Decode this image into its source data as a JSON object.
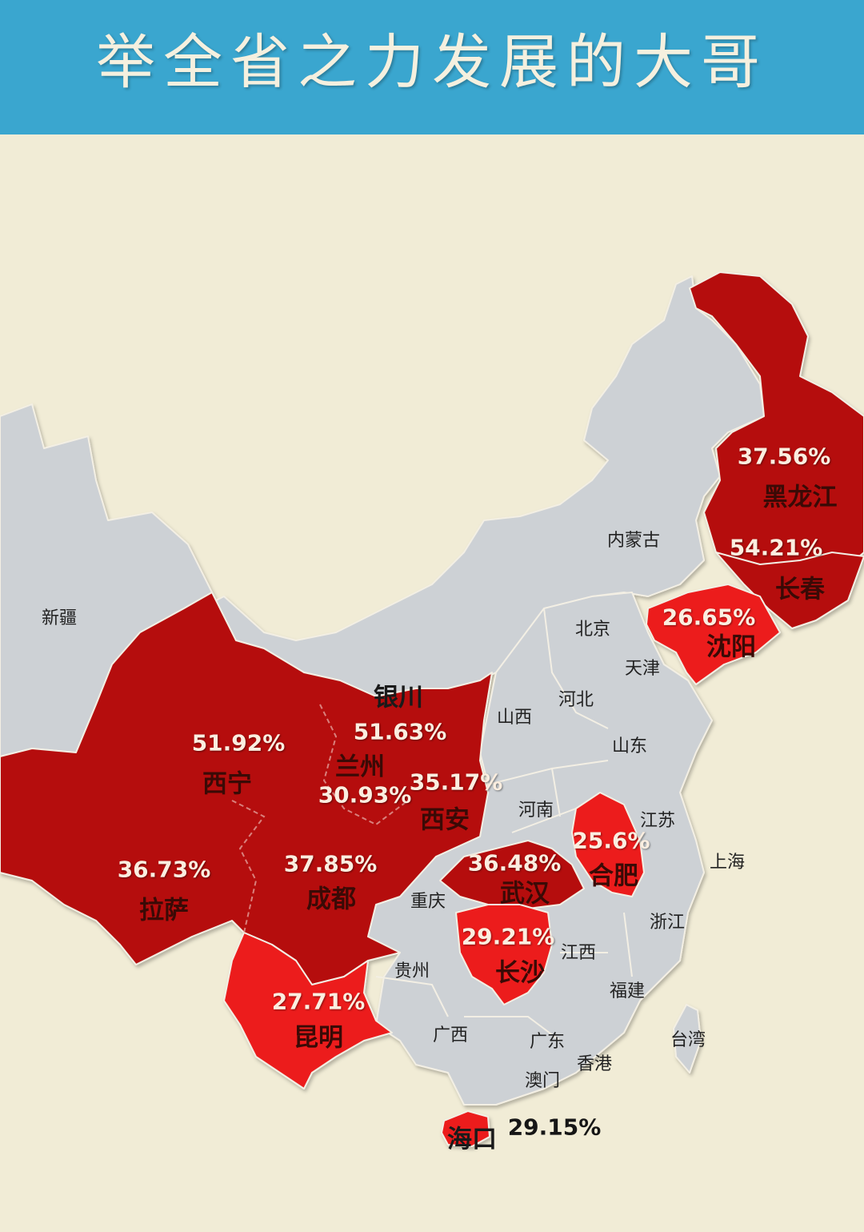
{
  "title": "举全省之力发展的大哥",
  "colors": {
    "header": "#3aa6cf",
    "background": "#f1ecd6",
    "province_gray": "#cdd1d5",
    "dark_red": "#b50e10",
    "bright_red": "#ec1f1f"
  },
  "provinces": {
    "xinjiang": "新疆",
    "neimenggu": "内蒙古",
    "beijing": "北京",
    "tianjin": "天津",
    "hebei": "河北",
    "shanxi": "山西",
    "shandong": "山东",
    "henan": "河南",
    "jiangsu": "江苏",
    "shanghai": "上海",
    "zhejiang": "浙江",
    "jiangxi": "江西",
    "fujian": "福建",
    "taiwan": "台湾",
    "guangdong": "广东",
    "guangxi": "广西",
    "guizhou": "贵州",
    "chongqing": "重庆",
    "hongkong": "香港",
    "macau": "澳门"
  },
  "cities": [
    {
      "key": "harbin",
      "name": "黑龙江",
      "pct": "37.56%"
    },
    {
      "key": "changchun",
      "name": "长春",
      "pct": "54.21%"
    },
    {
      "key": "shenyang",
      "name": "沈阳",
      "pct": "26.65%"
    },
    {
      "key": "yinchuan",
      "name": "银川",
      "pct": "51.63%"
    },
    {
      "key": "xining",
      "name": "西宁",
      "pct": "51.92%"
    },
    {
      "key": "lanzhou",
      "name": "兰州",
      "pct": "30.93%"
    },
    {
      "key": "xian",
      "name": "西安",
      "pct": "35.17%"
    },
    {
      "key": "hefei",
      "name": "合肥",
      "pct": "25.6%"
    },
    {
      "key": "lhasa",
      "name": "拉萨",
      "pct": "36.73%"
    },
    {
      "key": "chengdu",
      "name": "成都",
      "pct": "37.85%"
    },
    {
      "key": "wuhan",
      "name": "武汉",
      "pct": "36.48%"
    },
    {
      "key": "changsha",
      "name": "长沙",
      "pct": "29.21%"
    },
    {
      "key": "kunming",
      "name": "昆明",
      "pct": "27.71%"
    },
    {
      "key": "haikou",
      "name": "海口",
      "pct": "29.15%"
    }
  ]
}
